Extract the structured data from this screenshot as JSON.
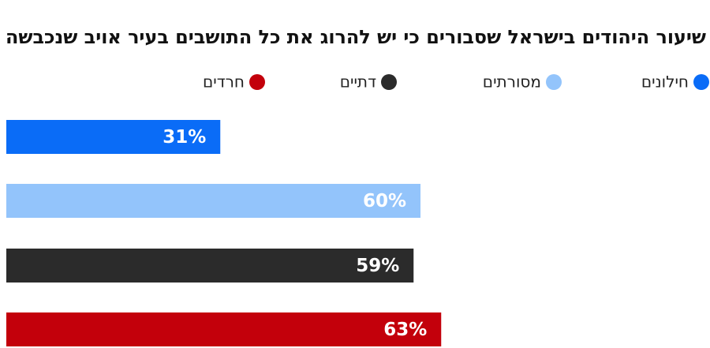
{
  "chart_data": {
    "type": "bar",
    "orientation": "horizontal",
    "title": "שיעור היהודים בישראל שסבורים כי יש להרוג את כל התושבים בעיר אויב שנכבשה",
    "categories": [
      "חילונים",
      "מסורתים",
      "דתיים",
      "חרדים"
    ],
    "values": [
      31,
      60,
      59,
      63
    ],
    "value_labels": [
      "31%",
      "60%",
      "59%",
      "63%"
    ],
    "colors": [
      "#0a6cf7",
      "#93c4fb",
      "#2b2b2b",
      "#c3000b"
    ],
    "xlim": [
      0,
      100
    ]
  }
}
